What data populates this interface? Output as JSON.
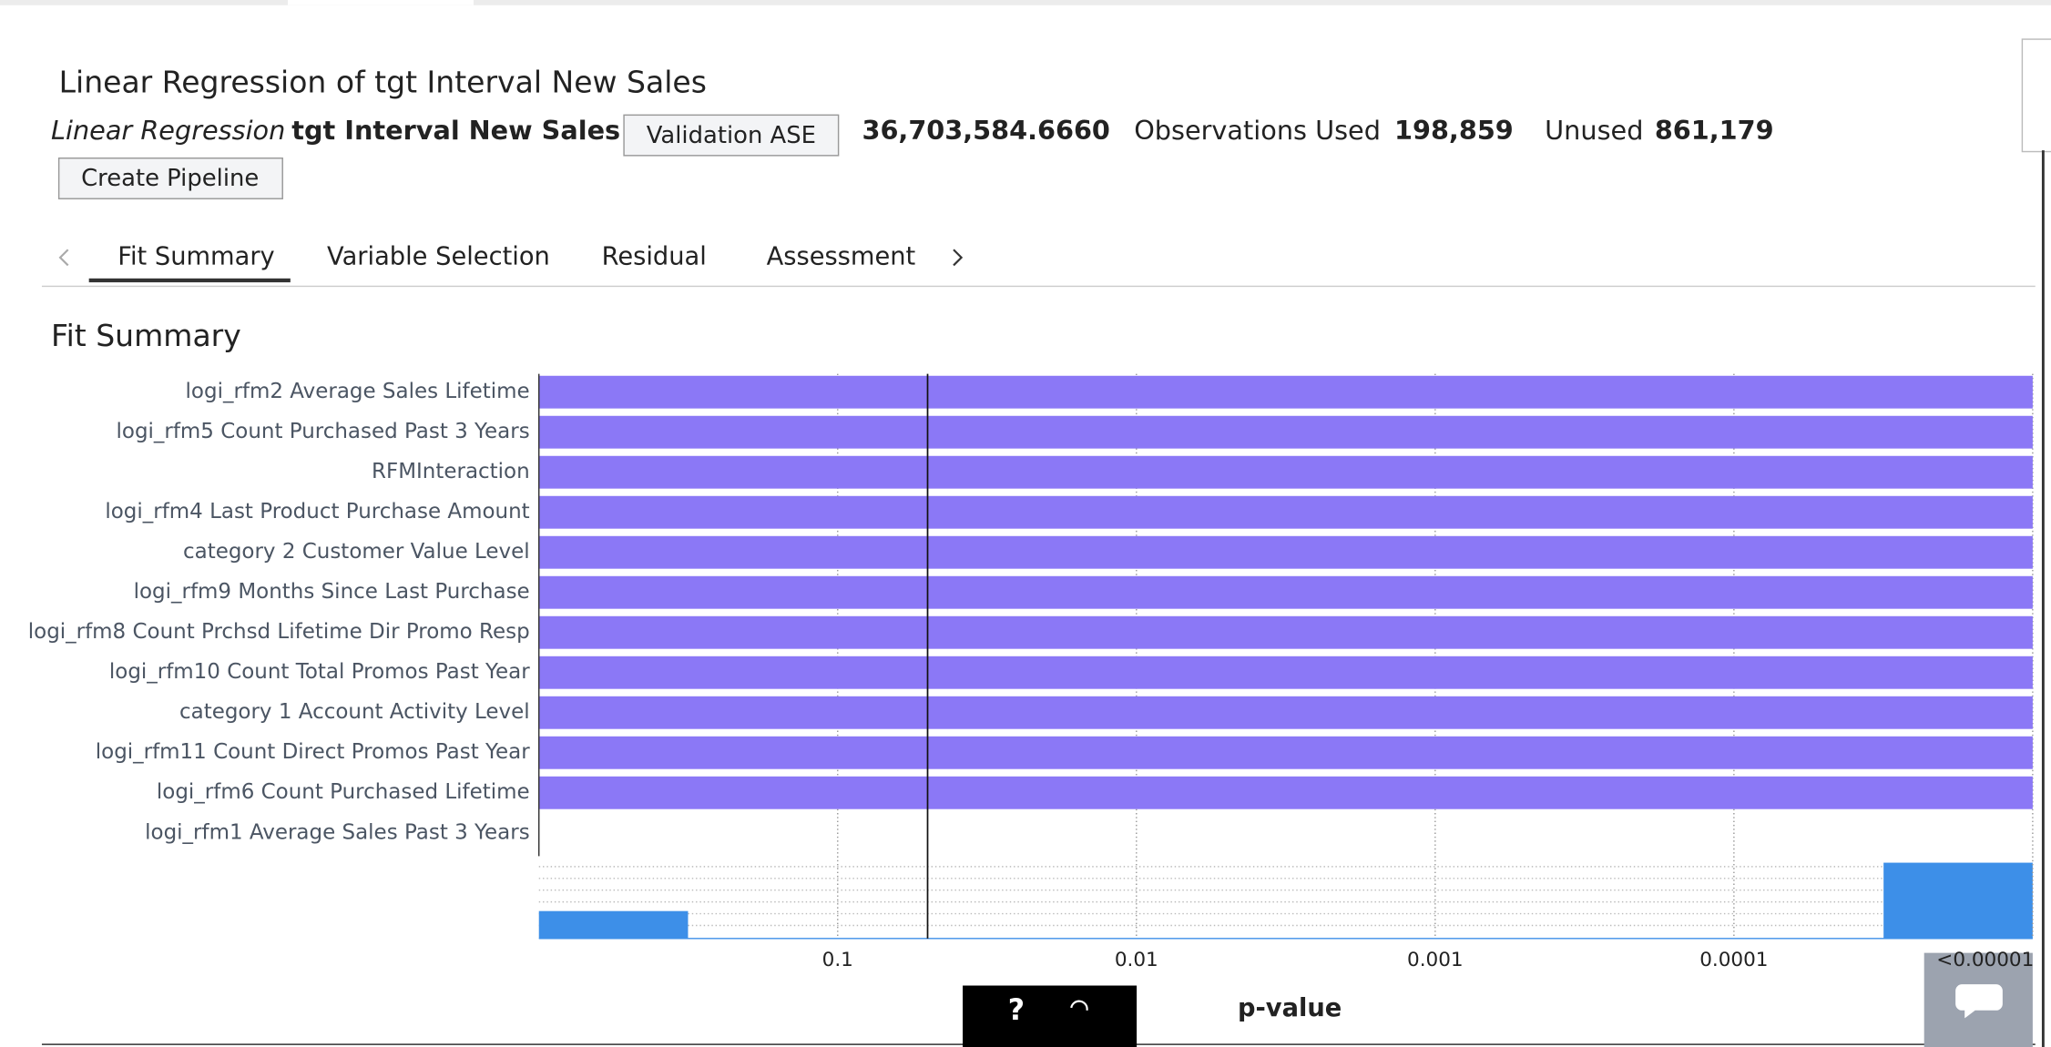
{
  "header": {
    "title": "Linear Regression of tgt Interval New Sales",
    "model_type": "Linear Regression",
    "target": "tgt Interval New Sales",
    "metric_button": "Validation ASE",
    "metric_value": "36,703,584.6660",
    "observations_used_label": "Observations Used",
    "observations_used": "198,859",
    "unused_label": "Unused",
    "unused": "861,179",
    "pipeline_button": "Create Pipeline"
  },
  "tabs": [
    "Fit Summary",
    "Variable Selection",
    "Residual",
    "Assessment"
  ],
  "help_button": "?",
  "chart_data": {
    "type": "bar",
    "orientation": "horizontal",
    "title": "Fit Summary",
    "x_label": "p-value",
    "categories": [
      "logi_rfm2 Average Sales Lifetime",
      "logi_rfm5 Count Purchased Past 3 Years",
      "RFMInteraction",
      "logi_rfm4 Last Product Purchase Amount",
      "category 2 Customer Value Level",
      "logi_rfm9 Months Since Last Purchase",
      "logi_rfm8 Count Prchsd Lifetime Dir Promo Resp",
      "logi_rfm10 Count Total Promos Past Year",
      "category 1 Account Activity Level",
      "logi_rfm11 Count Direct Promos Past Year",
      "logi_rfm6 Count Purchased Lifetime",
      "logi_rfm1 Average Sales Past 3 Years"
    ],
    "values": [
      1e-05,
      1e-05,
      1e-05,
      1e-05,
      1e-05,
      1e-05,
      1e-05,
      1e-05,
      1e-05,
      1e-05,
      1e-05,
      1
    ],
    "color": "#8b78f6",
    "xscale": "log",
    "xlim": [
      1,
      1e-05
    ],
    "xticks": [
      0.1,
      0.01,
      0.001,
      0.0001,
      {
        "value": 1e-05,
        "label": "<0.00001"
      }
    ],
    "grid": true,
    "reference_line": 0.05
  }
}
